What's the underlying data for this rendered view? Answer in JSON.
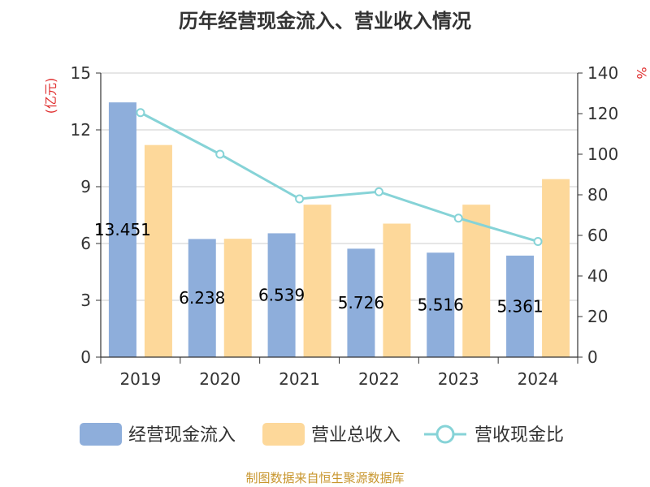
{
  "chart_data": {
    "type": "bar",
    "title": "历年经营现金流入、营业收入情况",
    "categories": [
      "2019",
      "2020",
      "2021",
      "2022",
      "2023",
      "2024"
    ],
    "y_left": {
      "unit": "(亿元)",
      "min": 0,
      "max": 15,
      "ticks": [
        0,
        3,
        6,
        9,
        12,
        15
      ]
    },
    "y_right": {
      "unit": "%",
      "min": 0,
      "max": 140,
      "ticks": [
        0,
        20,
        40,
        60,
        80,
        100,
        120,
        140
      ]
    },
    "series": [
      {
        "name": "经营现金流入",
        "type": "bar",
        "axis": "left",
        "color": "#8eaedb",
        "values": [
          13.451,
          6.238,
          6.539,
          5.726,
          5.516,
          5.361
        ],
        "labels": [
          "13.451",
          "6.238",
          "6.539",
          "5.726",
          "5.516",
          "5.361"
        ]
      },
      {
        "name": "营业总收入",
        "type": "bar",
        "axis": "left",
        "color": "#fdd89a",
        "values": [
          11.2,
          6.25,
          8.05,
          7.05,
          8.05,
          9.4
        ]
      },
      {
        "name": "营收现金比",
        "type": "line",
        "axis": "right",
        "color": "#86d3d7",
        "values": [
          120.5,
          100.0,
          78.0,
          81.5,
          68.5,
          57.0
        ]
      }
    ],
    "grid": true,
    "legend": "bottom"
  },
  "source_note": "制图数据来自恒生聚源数据库"
}
